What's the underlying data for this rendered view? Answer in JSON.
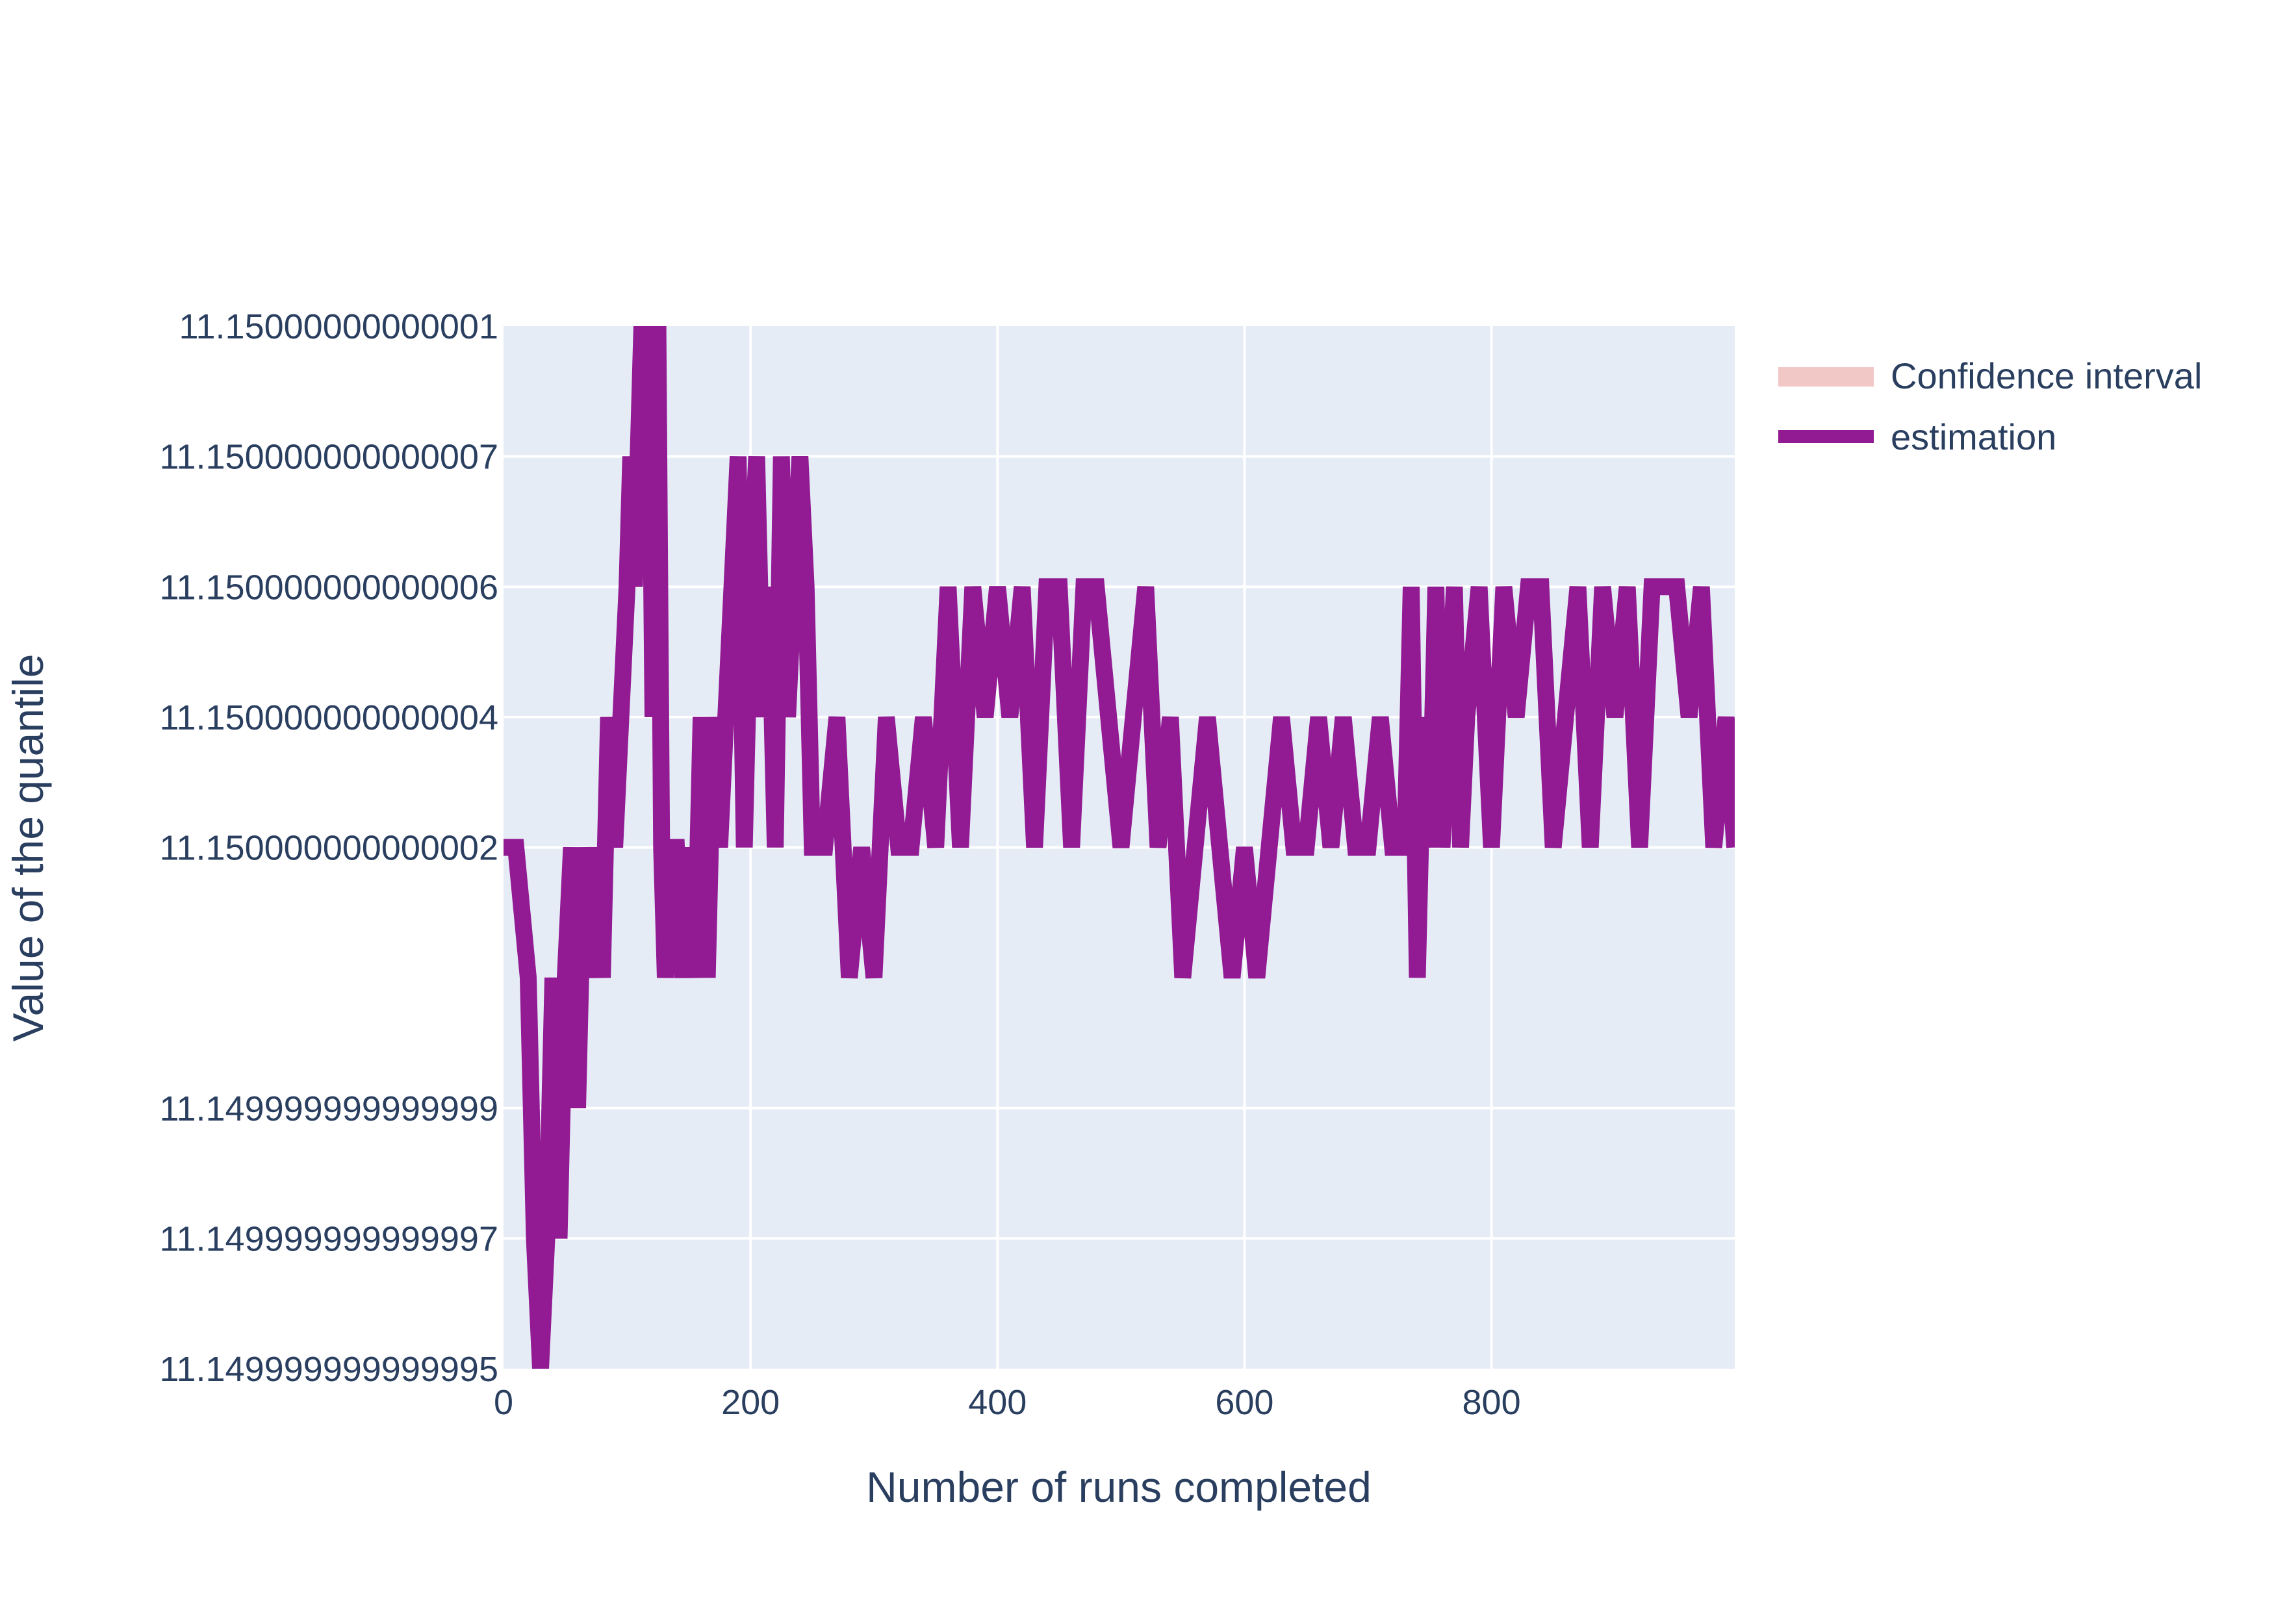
{
  "chart_data": {
    "type": "line",
    "xlabel": "Number of runs completed",
    "ylabel": "Value of the quantile",
    "xlim": [
      0,
      997
    ],
    "ylim": [
      11.149999999999995,
      11.15000000000001
    ],
    "x_ticks": [
      {
        "value": 0,
        "label": "0"
      },
      {
        "value": 200,
        "label": "200"
      },
      {
        "value": 400,
        "label": "400"
      },
      {
        "value": 600,
        "label": "600"
      },
      {
        "value": 800,
        "label": "800"
      }
    ],
    "y_ticks": [
      {
        "value": 11.149999999999995,
        "label": "11.149999999999995"
      },
      {
        "value": 11.149999999999997,
        "label": "11.149999999999997"
      },
      {
        "value": 11.149999999999999,
        "label": "11.149999999999999"
      },
      {
        "value": 11.150000000000002,
        "label": "11.150000000000002"
      },
      {
        "value": 11.150000000000004,
        "label": "11.150000000000004"
      },
      {
        "value": 11.150000000000006,
        "label": "11.150000000000006"
      },
      {
        "value": 11.150000000000007,
        "label": "11.150000000000007"
      },
      {
        "value": 11.15000000000001,
        "label": "11.15000000000001"
      }
    ],
    "grid": true,
    "legend_position": "top-right",
    "series": [
      {
        "name": "Confidence interval",
        "color": "#f2c8c7",
        "values": []
      },
      {
        "name": "estimation",
        "color": "#921b93",
        "x": [
          0,
          10,
          20,
          25,
          30,
          35,
          40,
          45,
          50,
          55,
          60,
          65,
          70,
          75,
          80,
          85,
          90,
          95,
          100,
          103,
          106,
          109,
          112,
          115,
          118,
          121,
          125,
          128,
          131,
          135,
          140,
          145,
          150,
          155,
          160,
          165,
          170,
          175,
          180,
          185,
          190,
          195,
          200,
          205,
          210,
          215,
          220,
          225,
          230,
          235,
          240,
          245,
          250,
          260,
          270,
          280,
          290,
          300,
          310,
          320,
          330,
          340,
          350,
          360,
          370,
          380,
          390,
          400,
          410,
          420,
          430,
          440,
          450,
          460,
          470,
          480,
          490,
          500,
          510,
          520,
          530,
          540,
          550,
          560,
          570,
          580,
          590,
          600,
          610,
          620,
          630,
          640,
          650,
          660,
          670,
          680,
          690,
          700,
          710,
          720,
          730,
          735,
          740,
          745,
          750,
          755,
          760,
          765,
          770,
          775,
          780,
          790,
          800,
          810,
          820,
          830,
          840,
          850,
          860,
          870,
          880,
          890,
          900,
          910,
          920,
          930,
          940,
          950,
          960,
          970,
          980,
          990,
          997
        ],
        "y": [
          11.150000000000002,
          11.150000000000002,
          11.15,
          11.149999999999997,
          11.149999999999995,
          11.149999999999997,
          11.15,
          11.149999999999997,
          11.15,
          11.150000000000002,
          11.149999999999999,
          11.150000000000002,
          11.15,
          11.150000000000002,
          11.15,
          11.150000000000004,
          11.150000000000002,
          11.150000000000004,
          11.150000000000006,
          11.150000000000007,
          11.150000000000006,
          11.150000000000007,
          11.15000000000001,
          11.150000000000007,
          11.15000000000001,
          11.150000000000004,
          11.15000000000001,
          11.150000000000002,
          11.15,
          11.150000000000002,
          11.150000000000002,
          11.15,
          11.150000000000002,
          11.15,
          11.150000000000004,
          11.15,
          11.150000000000004,
          11.150000000000002,
          11.150000000000004,
          11.150000000000006,
          11.150000000000007,
          11.150000000000002,
          11.150000000000006,
          11.150000000000007,
          11.150000000000004,
          11.150000000000006,
          11.150000000000002,
          11.150000000000007,
          11.150000000000004,
          11.150000000000006,
          11.150000000000007,
          11.150000000000006,
          11.150000000000002,
          11.150000000000002,
          11.150000000000004,
          11.15,
          11.150000000000002,
          11.15,
          11.150000000000004,
          11.150000000000002,
          11.150000000000002,
          11.150000000000004,
          11.150000000000002,
          11.150000000000006,
          11.150000000000002,
          11.150000000000006,
          11.150000000000004,
          11.150000000000006,
          11.150000000000004,
          11.150000000000006,
          11.150000000000002,
          11.150000000000006,
          11.150000000000006,
          11.150000000000002,
          11.150000000000006,
          11.150000000000006,
          11.150000000000004,
          11.150000000000002,
          11.150000000000004,
          11.150000000000006,
          11.150000000000002,
          11.150000000000004,
          11.15,
          11.150000000000002,
          11.150000000000004,
          11.150000000000002,
          11.15,
          11.150000000000002,
          11.15,
          11.150000000000002,
          11.150000000000004,
          11.150000000000002,
          11.150000000000002,
          11.150000000000004,
          11.150000000000002,
          11.150000000000004,
          11.150000000000002,
          11.150000000000002,
          11.150000000000004,
          11.150000000000002,
          11.150000000000002,
          11.150000000000006,
          11.15,
          11.150000000000004,
          11.150000000000002,
          11.150000000000006,
          11.150000000000002,
          11.150000000000004,
          11.150000000000006,
          11.150000000000002,
          11.150000000000004,
          11.150000000000006,
          11.150000000000002,
          11.150000000000006,
          11.150000000000004,
          11.150000000000006,
          11.150000000000006,
          11.150000000000002,
          11.150000000000004,
          11.150000000000006,
          11.150000000000002,
          11.150000000000006,
          11.150000000000004,
          11.150000000000006,
          11.150000000000002,
          11.150000000000006,
          11.150000000000006,
          11.150000000000006,
          11.150000000000004,
          11.150000000000006,
          11.150000000000002,
          11.150000000000004,
          11.150000000000002
        ]
      }
    ]
  },
  "style": {
    "plot_bg": "#e5ecf6",
    "grid_color": "#ffffff",
    "text_color": "#2a3f5f"
  }
}
